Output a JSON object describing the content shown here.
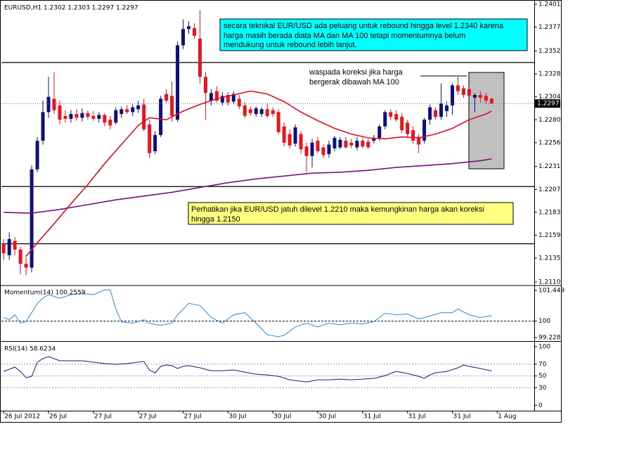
{
  "chart_data": [
    {
      "type": "candlestick",
      "title": "EURUSD,H1 1.2302 1.2303 1.2297 1.2297",
      "open": [
        1.215,
        1.2138,
        1.2153,
        1.2144,
        1.2129,
        1.2125,
        1.2228,
        1.2258,
        1.2288,
        1.2302,
        1.2295,
        1.2284,
        1.2281,
        1.2286,
        1.2282,
        1.2287,
        1.2284,
        1.2281,
        1.2285,
        1.228,
        1.2277,
        1.2286,
        1.2291,
        1.2288,
        1.2291,
        1.2296,
        1.2275,
        1.2247,
        1.2264,
        1.2307,
        1.2305,
        1.228,
        1.2358,
        1.2375,
        1.2376,
        1.2365,
        1.2325,
        1.23,
        1.231,
        1.2298,
        1.2306,
        1.2299,
        1.2302,
        1.2295,
        1.2291,
        1.2286,
        1.2286,
        1.2291,
        1.229,
        1.2288,
        1.2273,
        1.2265,
        1.2255,
        1.2265,
        1.2252,
        1.2242,
        1.2258,
        1.2251,
        1.2244,
        1.225,
        1.2251,
        1.2258,
        1.2256,
        1.2251,
        1.2258,
        1.2257,
        1.2258,
        1.2261,
        1.2273,
        1.2288,
        1.2286,
        1.2283,
        1.2277,
        1.2269,
        1.2262,
        1.2258,
        1.228,
        1.229,
        1.2283,
        1.2289,
        1.2295,
        1.2316,
        1.2313,
        1.2312,
        1.2303,
        1.2306,
        1.2305,
        1.2302
      ],
      "high": [
        1.2155,
        1.2162,
        1.2157,
        1.2147,
        1.2138,
        1.2232,
        1.2262,
        1.23,
        1.2325,
        1.233,
        1.23,
        1.229,
        1.229,
        1.2291,
        1.2292,
        1.229,
        1.2289,
        1.2288,
        1.2287,
        1.2284,
        1.2293,
        1.2294,
        1.2295,
        1.2296,
        1.23,
        1.2302,
        1.228,
        1.2268,
        1.2305,
        1.2312,
        1.232,
        1.2362,
        1.2385,
        1.2383,
        1.2381,
        1.2395,
        1.233,
        1.2312,
        1.2315,
        1.2309,
        1.2309,
        1.231,
        1.2306,
        1.2298,
        1.2294,
        1.2294,
        1.2293,
        1.2297,
        1.2293,
        1.2291,
        1.2277,
        1.227,
        1.2275,
        1.2268,
        1.2256,
        1.226,
        1.2262,
        1.2254,
        1.2258,
        1.2263,
        1.2262,
        1.2262,
        1.226,
        1.2262,
        1.2261,
        1.226,
        1.2264,
        1.2275,
        1.229,
        1.2291,
        1.229,
        1.2287,
        1.228,
        1.2273,
        1.2265,
        1.2282,
        1.2296,
        1.2293,
        1.2318,
        1.2299,
        1.2318,
        1.2325,
        1.2316,
        1.2314,
        1.2308,
        1.231,
        1.2308,
        1.2303
      ],
      "low": [
        1.2133,
        1.2133,
        1.2138,
        1.2118,
        1.2117,
        1.212,
        1.2225,
        1.2254,
        1.2282,
        1.2286,
        1.2275,
        1.2277,
        1.2277,
        1.2279,
        1.2278,
        1.228,
        1.2279,
        1.2277,
        1.2273,
        1.227,
        1.2275,
        1.2282,
        1.2286,
        1.2284,
        1.2287,
        1.2268,
        1.224,
        1.2244,
        1.2262,
        1.2298,
        1.2278,
        1.2278,
        1.2354,
        1.237,
        1.2365,
        1.2318,
        1.228,
        1.2295,
        1.2298,
        1.2295,
        1.2295,
        1.2296,
        1.2291,
        1.2282,
        1.2284,
        1.2283,
        1.2283,
        1.2282,
        1.2283,
        1.2265,
        1.2252,
        1.225,
        1.2252,
        1.2244,
        1.2225,
        1.223,
        1.2245,
        1.224,
        1.224,
        1.2247,
        1.2249,
        1.225,
        1.225,
        1.2248,
        1.225,
        1.2249,
        1.2255,
        1.2258,
        1.227,
        1.228,
        1.2278,
        1.2266,
        1.2262,
        1.2255,
        1.2245,
        1.2255,
        1.2275,
        1.228,
        1.228,
        1.2283,
        1.2285,
        1.2306,
        1.2303,
        1.2302,
        1.2288,
        1.2298,
        1.2297,
        1.2297
      ],
      "close": [
        1.214,
        1.2155,
        1.2144,
        1.2129,
        1.2125,
        1.2228,
        1.2258,
        1.2288,
        1.2304,
        1.229,
        1.228,
        1.2281,
        1.2286,
        1.2282,
        1.2287,
        1.2283,
        1.2281,
        1.2285,
        1.2277,
        1.2274,
        1.229,
        1.2291,
        1.2288,
        1.2293,
        1.2295,
        1.227,
        1.2245,
        1.2264,
        1.2302,
        1.23,
        1.2284,
        1.2358,
        1.2375,
        1.2378,
        1.2368,
        1.2325,
        1.2308,
        1.2308,
        1.23,
        1.2305,
        1.2298,
        1.2307,
        1.2294,
        1.2284,
        1.2287,
        1.2292,
        1.2291,
        1.2284,
        1.2286,
        1.2267,
        1.2256,
        1.2253,
        1.2272,
        1.2249,
        1.2242,
        1.2256,
        1.2247,
        1.2243,
        1.2254,
        1.2261,
        1.2259,
        1.2251,
        1.2253,
        1.2258,
        1.2252,
        1.2251,
        1.2261,
        1.2273,
        1.2288,
        1.2283,
        1.228,
        1.2269,
        1.2265,
        1.2258,
        1.2254,
        1.228,
        1.2293,
        1.2283,
        1.2297,
        1.2295,
        1.2316,
        1.231,
        1.2306,
        1.2305,
        1.2306,
        1.2303,
        1.23,
        1.2297
      ],
      "up_color": "#10107a",
      "down_color": "#e8141e",
      "series": [
        {
          "color": "#d8102a",
          "x": [
            4,
            6,
            9,
            12,
            15,
            18,
            21,
            24,
            26,
            29,
            32,
            35,
            38,
            41,
            44,
            47,
            50,
            53,
            56,
            59,
            62,
            65,
            68,
            71,
            74,
            77,
            80,
            83,
            86,
            87
          ],
          "values": [
            1.2137,
            1.2151,
            1.2171,
            1.2192,
            1.2212,
            1.2234,
            1.2254,
            1.2274,
            1.2282,
            1.228,
            1.2289,
            1.2296,
            1.2302,
            1.2306,
            1.231,
            1.2307,
            1.2299,
            1.2288,
            1.2279,
            1.2271,
            1.2265,
            1.2261,
            1.226,
            1.2262,
            1.2261,
            1.2265,
            1.2271,
            1.228,
            1.2286,
            1.2289
          ]
        },
        {
          "color": "#7a1080",
          "x": [
            0,
            5,
            10,
            15,
            20,
            25,
            30,
            35,
            40,
            45,
            50,
            55,
            60,
            65,
            70,
            75,
            80,
            85,
            87
          ],
          "values": [
            1.2183,
            1.2182,
            1.2186,
            1.2191,
            1.2196,
            1.22,
            1.2204,
            1.2209,
            1.2214,
            1.2218,
            1.2221,
            1.2224,
            1.2225,
            1.2227,
            1.223,
            1.2232,
            1.2234,
            1.2237,
            1.2239
          ]
        }
      ],
      "hlines": [
        1.234,
        1.221,
        1.215
      ],
      "xlim": [
        -0.4,
        94.6
      ],
      "ylim": [
        1.2107,
        1.2404
      ],
      "yticks": [
        1.2401,
        1.2377,
        1.2352,
        1.2328,
        1.2304,
        {
          "value": 1.228,
          "label": "1.2280"
        },
        1.2256,
        1.2231,
        1.2207,
        1.2183,
        1.2159,
        1.2135,
        {
          "value": 1.211,
          "label": "1.2110"
        }
      ],
      "annotations": [
        {
          "color": "#00ffff",
          "lines": [
            "secara teknikal EUR/USD ada peluang untuk rebound hingga level 1.2340 karena",
            "harga masih berada diata MA dan MA 100 tetapi momentumnya belum",
            "mendukung untuk rebound lebih lanjut."
          ]
        },
        {
          "lines": [
            "waspada koreksi jika harga",
            "bergerak dibawah MA 100"
          ]
        },
        {
          "color": "#ffff80",
          "lines": [
            "Perhatikan jika EUR/USD jatuh dilevel 1.2210 maka kemungkinan harga akan koreksi",
            "hingga 1.2150"
          ]
        }
      ]
    },
    {
      "type": "line",
      "title": "Momentum(14) 100.2559",
      "color": "#2a8ae0",
      "x": [
        0,
        1,
        2,
        3,
        4,
        5,
        6,
        7,
        8,
        10,
        12,
        14,
        16,
        18,
        19,
        20,
        21,
        23,
        25,
        26,
        28,
        30,
        31,
        33,
        35,
        37,
        39,
        41,
        43,
        45,
        47,
        49,
        50,
        52,
        54,
        56,
        58,
        60,
        62,
        64,
        66,
        68,
        70,
        72,
        74,
        76,
        78,
        80,
        81,
        83,
        85,
        87
      ],
      "values": [
        100.17,
        100.07,
        100.3,
        99.9,
        99.97,
        100.4,
        100.84,
        101.08,
        101.25,
        101.08,
        101.25,
        101.31,
        101.25,
        101.48,
        101.48,
        100.57,
        99.97,
        99.9,
        100.07,
        99.9,
        99.8,
        99.9,
        100.3,
        100.84,
        100.74,
        100.17,
        99.9,
        100.3,
        100.4,
        99.9,
        99.36,
        99.26,
        99.33,
        99.73,
        99.9,
        99.73,
        99.9,
        99.83,
        99.9,
        99.87,
        99.97,
        100.37,
        100.3,
        100.34,
        100.1,
        100.24,
        100.4,
        100.4,
        100.57,
        100.3,
        100.17,
        100.2559
      ],
      "levels": [
        100
      ],
      "xlim": [
        -0.4,
        94.6
      ],
      "ylim": [
        99.09,
        101.65
      ],
      "yticks": [
        101.449,
        100,
        99.228
      ]
    },
    {
      "type": "line",
      "title": "RSI(14) 58.6234",
      "color": "#1a1a7a",
      "x": [
        0,
        1,
        2,
        3,
        4,
        5,
        6,
        7,
        8,
        9,
        10,
        12,
        14,
        16,
        18,
        20,
        22,
        24,
        25,
        26,
        27,
        28,
        29,
        30,
        31,
        32,
        33,
        35,
        37,
        39,
        41,
        43,
        45,
        47,
        49,
        51,
        54,
        56,
        58,
        60,
        62,
        64,
        66,
        68,
        70,
        72,
        74,
        75,
        76,
        77,
        79,
        81,
        82,
        83,
        85,
        87
      ],
      "values": [
        57.8,
        61.4,
        65.1,
        57.8,
        47.0,
        49.4,
        73.5,
        79.5,
        83.1,
        79.5,
        75.9,
        75.9,
        75.9,
        73.5,
        71.1,
        69.9,
        71.1,
        73.5,
        74.7,
        60.2,
        55.4,
        66.3,
        68.7,
        67.5,
        62.7,
        66.3,
        67.5,
        63.9,
        59.0,
        59.0,
        60.2,
        56.6,
        53.0,
        51.8,
        49.4,
        43.4,
        39.8,
        43.4,
        43.4,
        44.6,
        43.4,
        44.6,
        45.8,
        50.6,
        57.8,
        54.2,
        49.4,
        45.8,
        51.8,
        55.4,
        57.8,
        63.9,
        68.7,
        66.3,
        62.7,
        58.6234
      ],
      "levels": [
        70,
        50,
        30
      ],
      "xlim": [
        -0.4,
        94.6
      ],
      "ylim": [
        -8,
        107
      ],
      "yticks": [
        100,
        70,
        50,
        30,
        0
      ],
      "xticks": [
        {
          "value": 0,
          "label": "26 Jul 2012"
        },
        {
          "value": 8,
          "label": "26 Jul"
        },
        {
          "value": 16,
          "label": "27 Jul"
        },
        {
          "value": 24,
          "label": "27 Jul"
        },
        {
          "value": 32,
          "label": "27 Jul"
        },
        {
          "value": 40,
          "label": "30 Jul"
        },
        {
          "value": 48,
          "label": "30 Jul"
        },
        {
          "value": 56,
          "label": "30 Jul"
        },
        {
          "value": 64,
          "label": "31 Jul"
        },
        {
          "value": 72,
          "label": "31 Jul"
        },
        {
          "value": 80,
          "label": "31 Jul"
        },
        {
          "value": 88,
          "label": "1 Aug"
        }
      ]
    }
  ]
}
